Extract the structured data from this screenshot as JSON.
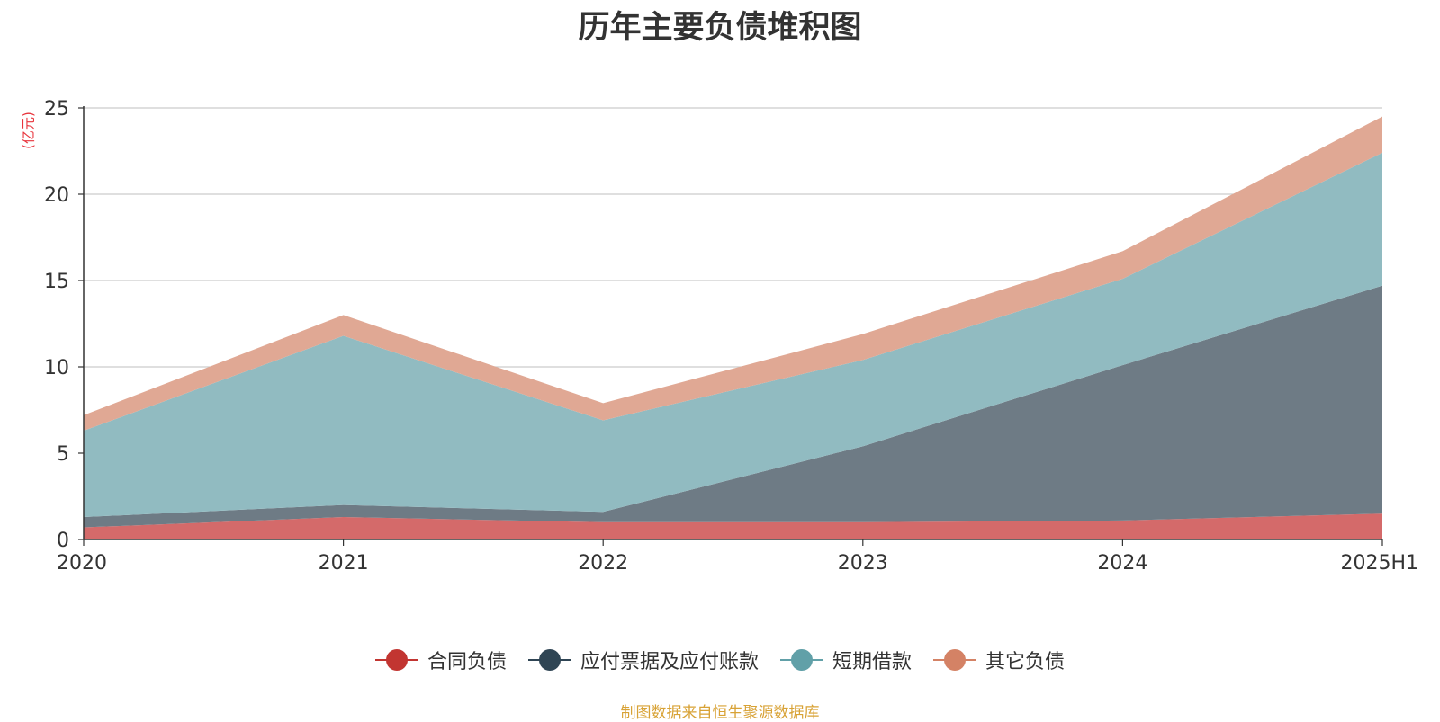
{
  "title": "历年主要负债堆积图",
  "unit": "(亿元)",
  "source": "制图数据来自恒生聚源数据库",
  "chart_data": {
    "type": "area",
    "stacked": true,
    "categories": [
      "2020",
      "2021",
      "2022",
      "2023",
      "2024",
      "2025H1"
    ],
    "ylim": [
      0,
      25
    ],
    "yticks": [
      "0",
      "5",
      "10",
      "15",
      "20",
      "25"
    ],
    "grid": true,
    "legend_position": "bottom",
    "series": [
      {
        "name": "合同负债",
        "color": "#c23531",
        "fill": "#d46a6a",
        "values": [
          0.7,
          1.3,
          1.0,
          1.0,
          1.1,
          1.5
        ]
      },
      {
        "name": "应付票据及应付账款",
        "color": "#2f4554",
        "fill": "#6e7b85",
        "values": [
          0.6,
          0.7,
          0.6,
          4.4,
          9.0,
          13.2
        ]
      },
      {
        "name": "短期借款",
        "color": "#61a0a8",
        "fill": "#91bbc1",
        "values": [
          5.0,
          9.8,
          5.3,
          5.0,
          5.0,
          7.7
        ]
      },
      {
        "name": "其它负债",
        "color": "#d48265",
        "fill": "#e0a894",
        "values": [
          0.9,
          1.2,
          1.0,
          1.5,
          1.6,
          2.1
        ]
      }
    ]
  }
}
